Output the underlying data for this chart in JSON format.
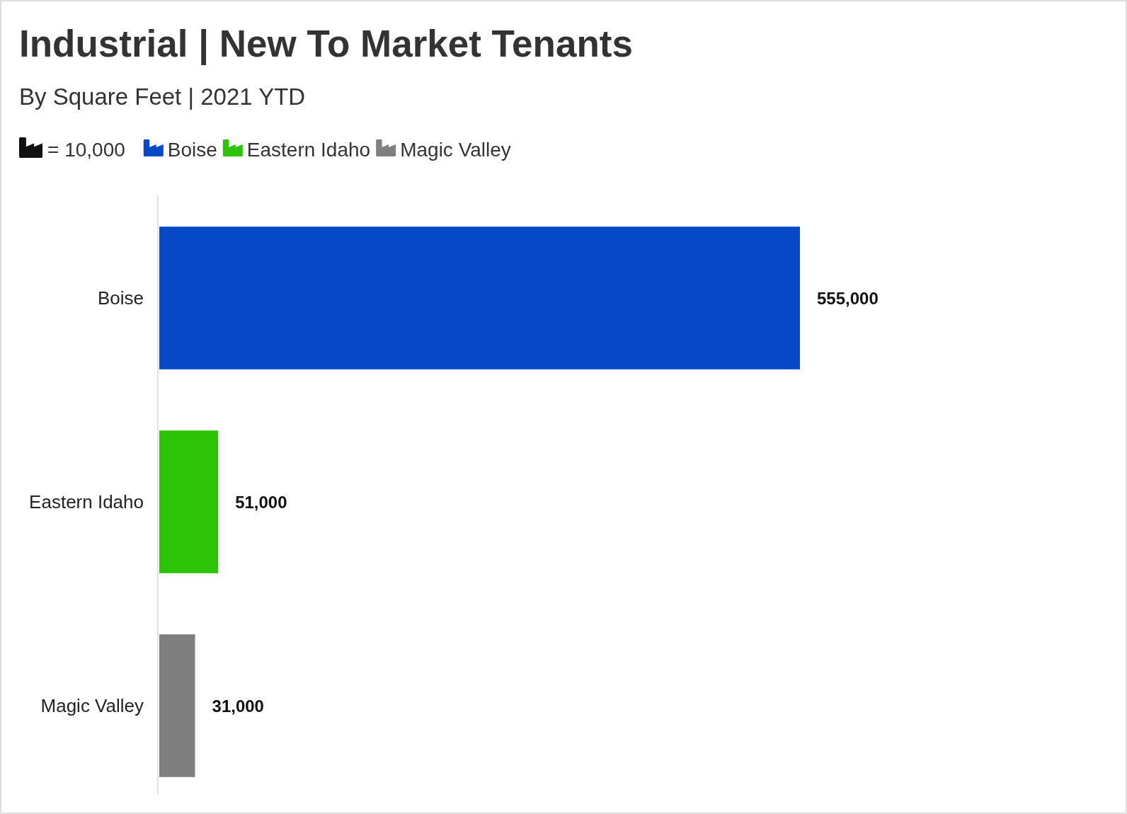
{
  "chart_data": {
    "type": "bar",
    "orientation": "horizontal",
    "stacked": true,
    "title": "Industrial | New To Market Tenants",
    "subtitle": "By Square Feet | 2021 YTD",
    "categories": [
      "Boise",
      "Eastern Idaho",
      "Magic Valley"
    ],
    "series": [
      {
        "name": "Boise",
        "color": "#0548c8",
        "values": [
          555000,
          null,
          null
        ],
        "value_labels": [
          "555,000",
          null,
          null
        ]
      },
      {
        "name": "Eastern Idaho",
        "color": "#2dc306",
        "values": [
          null,
          51000,
          null
        ],
        "value_labels": [
          null,
          "51,000",
          null
        ]
      },
      {
        "name": "Magic Valley",
        "color": "#7f7f7f",
        "values": [
          null,
          null,
          31000
        ],
        "value_labels": [
          null,
          null,
          "31,000"
        ]
      }
    ],
    "legend": "top left",
    "annotations": [
      "= 10,000"
    ]
  }
}
